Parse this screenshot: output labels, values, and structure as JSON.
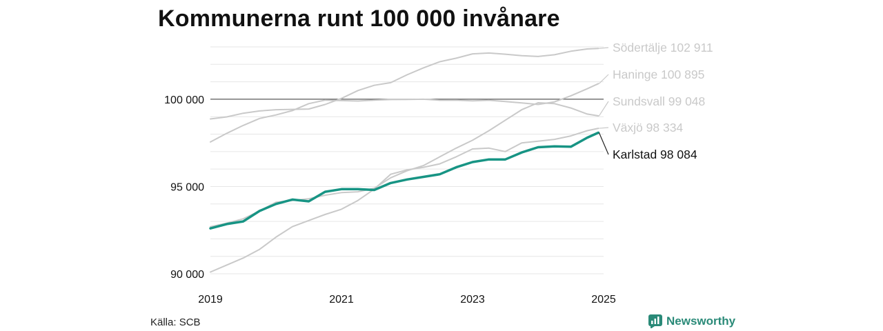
{
  "title": "Kommunerna runt 100 000 invånare",
  "source": "Källa: SCB",
  "brand": {
    "name": "Newsworthy",
    "icon": "newsworthy-logo-icon"
  },
  "colors": {
    "highlight": "#179484",
    "other": "#c9c9c9",
    "grid": "#e6e6e6",
    "reference": "#333333",
    "brand": "#2a8a78"
  },
  "chart_data": {
    "type": "line",
    "title": "Kommunerna runt 100 000 invånare",
    "xlabel": "",
    "ylabel": "",
    "xlim": [
      2019,
      2025
    ],
    "ylim": [
      90000,
      103000
    ],
    "x_ticks": [
      2019,
      2021,
      2023,
      2025
    ],
    "x_tick_labels": [
      "2019",
      "2021",
      "2023",
      "2025"
    ],
    "y_ticks": [
      90000,
      95000,
      100000
    ],
    "y_tick_labels": [
      "90 000",
      "95 000",
      "100 000"
    ],
    "reference_line": 100000,
    "grid": true,
    "x": [
      2019.0,
      2019.25,
      2019.5,
      2019.75,
      2020.0,
      2020.25,
      2020.5,
      2020.75,
      2021.0,
      2021.25,
      2021.5,
      2021.75,
      2022.0,
      2022.25,
      2022.5,
      2022.75,
      2023.0,
      2023.25,
      2023.5,
      2023.75,
      2024.0,
      2024.25,
      2024.5,
      2024.75,
      2024.92
    ],
    "series": [
      {
        "name": "Södertälje",
        "end_label": "Södertälje 102 911",
        "highlight": false,
        "values": [
          98870,
          98990,
          99200,
          99330,
          99400,
          99420,
          99440,
          99700,
          100050,
          100500,
          100800,
          100950,
          101400,
          101800,
          102150,
          102350,
          102600,
          102650,
          102580,
          102500,
          102450,
          102550,
          102750,
          102880,
          102911
        ]
      },
      {
        "name": "Haninge",
        "end_label": "Haninge 100 895",
        "highlight": false,
        "values": [
          97550,
          98050,
          98500,
          98900,
          99100,
          99350,
          99750,
          99950,
          99920,
          99900,
          99950,
          99980,
          99990,
          100000,
          99940,
          99950,
          99910,
          99940,
          99870,
          99790,
          99700,
          99850,
          100200,
          100600,
          100895
        ]
      },
      {
        "name": "Sundsvall",
        "end_label": "Sundsvall  99 048",
        "highlight": false,
        "values": [
          92700,
          92900,
          93150,
          93600,
          94100,
          94200,
          94300,
          94500,
          94650,
          94700,
          94900,
          95500,
          95900,
          96200,
          96700,
          97200,
          97650,
          98200,
          98800,
          99400,
          99800,
          99750,
          99500,
          99150,
          99048
        ]
      },
      {
        "name": "Växjö",
        "end_label": "Växjö  98 334",
        "highlight": false,
        "values": [
          90100,
          90500,
          90900,
          91400,
          92100,
          92700,
          93050,
          93400,
          93700,
          94200,
          94850,
          95700,
          95950,
          96100,
          96300,
          96700,
          97150,
          97200,
          97000,
          97500,
          97600,
          97700,
          97900,
          98200,
          98334
        ]
      },
      {
        "name": "Karlstad",
        "end_label": "Karlstad  98 084",
        "highlight": true,
        "values": [
          92600,
          92850,
          93000,
          93600,
          94000,
          94250,
          94150,
          94700,
          94850,
          94850,
          94800,
          95200,
          95400,
          95550,
          95700,
          96100,
          96400,
          96550,
          96550,
          96950,
          97250,
          97300,
          97280,
          97800,
          98084
        ]
      }
    ]
  }
}
